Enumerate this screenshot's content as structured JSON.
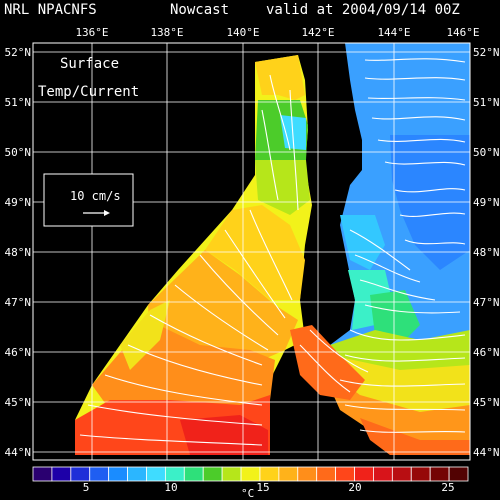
{
  "title": {
    "left": "NRL NPACNFS",
    "center": "Nowcast",
    "right": "valid at 2004/09/14 00Z"
  },
  "map": {
    "label_line1": "Surface",
    "label_line2": "Temp/Current",
    "scale_label": "10 cm/s",
    "lon_labels": [
      "136°E",
      "138°E",
      "140°E",
      "142°E",
      "144°E",
      "146°E"
    ],
    "lat_labels": [
      "52°N",
      "51°N",
      "50°N",
      "49°N",
      "48°N",
      "47°N",
      "46°N",
      "45°N",
      "44°N"
    ]
  },
  "colorbar": {
    "ticks": [
      "5",
      "10",
      "15",
      "20",
      "25"
    ],
    "unit": "°C",
    "colors": [
      "#2a0070",
      "#1d00a8",
      "#1e2ed8",
      "#1f5ef2",
      "#1a8cff",
      "#2bb6ff",
      "#3fdcff",
      "#3bf0c8",
      "#2ee07a",
      "#4ccc2a",
      "#b6e61a",
      "#f2f21a",
      "#ffd21a",
      "#ffb21a",
      "#ff8e1a",
      "#ff6a1a",
      "#ff461a",
      "#f0221a",
      "#d8141a",
      "#b80e12",
      "#960808",
      "#740404",
      "#520202"
    ]
  },
  "colors": {
    "land": "#000000",
    "grid": "#ffffff",
    "vector": "#ffffff"
  }
}
